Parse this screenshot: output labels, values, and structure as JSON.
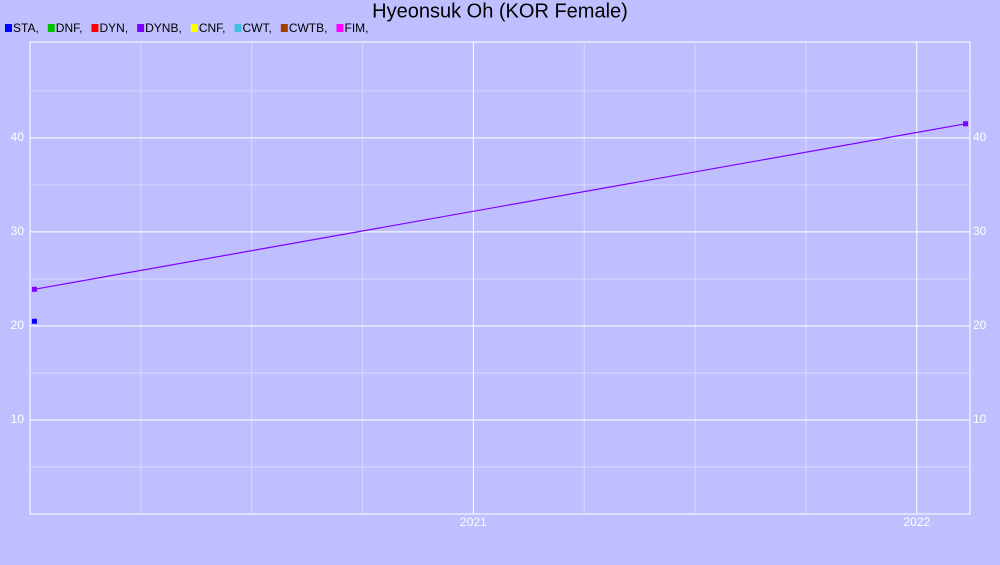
{
  "chart_data": {
    "type": "line",
    "title": "Hyeonsuk Oh (KOR Female)",
    "x": [
      2020.01,
      2022.11
    ],
    "series": [
      {
        "name": "STA,",
        "color": "#0000ff",
        "values": [
          20.5,
          null
        ]
      },
      {
        "name": "DNF,",
        "color": "#00c000",
        "values": [
          null,
          null
        ]
      },
      {
        "name": "DYN,",
        "color": "#ff0000",
        "values": [
          null,
          null
        ]
      },
      {
        "name": "DYNB,",
        "color": "#7f00ff",
        "values": [
          23.9,
          41.5
        ]
      },
      {
        "name": "CNF,",
        "color": "#ffff00",
        "values": [
          null,
          null
        ]
      },
      {
        "name": "CWT,",
        "color": "#40c0e0",
        "values": [
          null,
          null
        ]
      },
      {
        "name": "CWTB,",
        "color": "#a04000",
        "values": [
          null,
          null
        ]
      },
      {
        "name": "FIM,",
        "color": "#ff00ff",
        "values": [
          null,
          null
        ]
      }
    ],
    "xlim": [
      2020,
      2022.12
    ],
    "xticks": [
      2021,
      2022
    ],
    "xminor": [
      2020.25,
      2020.5,
      2020.75,
      2021.25,
      2021.5,
      2021.75
    ],
    "ylim": [
      0,
      50.2
    ],
    "yticks": [
      10,
      20,
      30,
      40
    ],
    "yminor": [
      5,
      15,
      25,
      35,
      45
    ],
    "grid": true
  }
}
